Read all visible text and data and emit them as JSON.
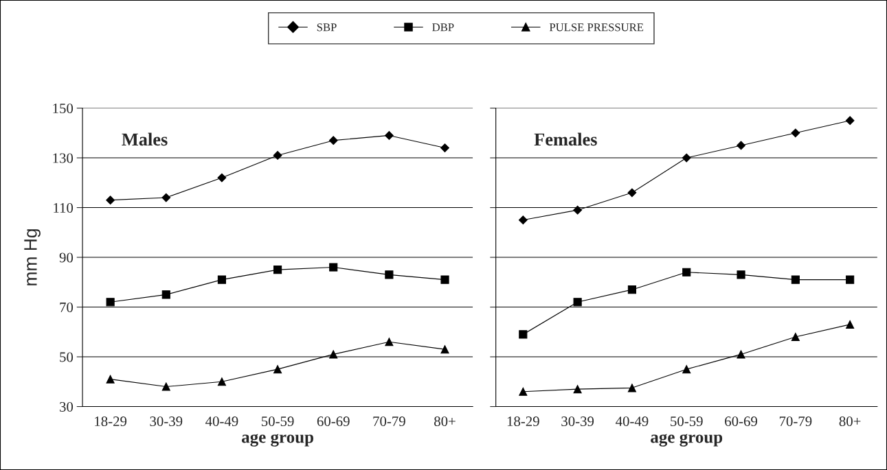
{
  "chart_data": [
    {
      "type": "line",
      "categories": [
        "18-29",
        "30-39",
        "40-49",
        "50-59",
        "60-69",
        "70-79",
        "80+"
      ],
      "xlabel": "age group",
      "ylabel": "mm Hg",
      "ylim": [
        30,
        150
      ],
      "yticks": [
        30,
        50,
        70,
        90,
        110,
        130,
        150
      ],
      "grid": "y",
      "legend": "top",
      "annotations": [
        "Males"
      ],
      "series": [
        {
          "name": "SBP",
          "color": "#000000",
          "marker": "diamond",
          "values": [
            113,
            114,
            122,
            131,
            137,
            139,
            134
          ]
        },
        {
          "name": "DBP",
          "color": "#000000",
          "marker": "square",
          "values": [
            72,
            75,
            81,
            85,
            86,
            83,
            81
          ]
        },
        {
          "name": "PULSE PRESSURE",
          "color": "#000000",
          "marker": "triangle",
          "values": [
            41,
            38,
            40,
            45,
            51,
            56,
            53
          ]
        }
      ]
    },
    {
      "type": "line",
      "categories": [
        "18-29",
        "30-39",
        "40-49",
        "50-59",
        "60-69",
        "70-79",
        "80+"
      ],
      "xlabel": "age group",
      "ylim": [
        30,
        150
      ],
      "yticks": [
        30,
        50,
        70,
        90,
        110,
        130,
        150
      ],
      "tick_labels": "x",
      "grid": "y",
      "annotations": [
        "Females"
      ],
      "series": [
        {
          "color": "#000000",
          "marker": "diamond",
          "values": [
            105,
            109,
            116,
            130,
            135,
            140,
            145
          ]
        },
        {
          "color": "#000000",
          "marker": "square",
          "values": [
            59,
            72,
            77,
            84,
            83,
            81,
            81
          ]
        },
        {
          "color": "#000000",
          "marker": "triangle",
          "values": [
            36,
            37,
            37.5,
            45,
            51,
            58,
            63
          ]
        }
      ]
    }
  ]
}
